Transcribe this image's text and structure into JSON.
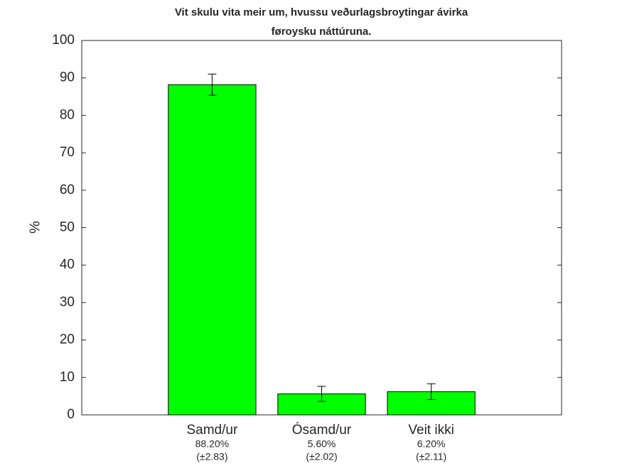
{
  "chart_data": {
    "type": "bar",
    "title": [
      "Vit skulu vita meir um, hvussu veðurlagsbroytingar ávirka",
      "føroysku náttúruna."
    ],
    "y_label": "%",
    "categories": [
      "Samd/ur",
      "Ósamd/ur",
      "Veit ikki"
    ],
    "values": [
      88.2,
      5.6,
      6.2
    ],
    "value_labels": [
      "88.20%",
      "5.60%",
      "6.20%"
    ],
    "errors": [
      2.83,
      2.02,
      2.11
    ],
    "error_labels": [
      "(±2.83)",
      "(±2.02)",
      "(±2.11)"
    ],
    "color": "#00ff00",
    "ylim": [
      0,
      100
    ],
    "yticks": [
      0,
      10,
      20,
      30,
      40,
      50,
      60,
      70,
      80,
      90,
      100
    ]
  }
}
